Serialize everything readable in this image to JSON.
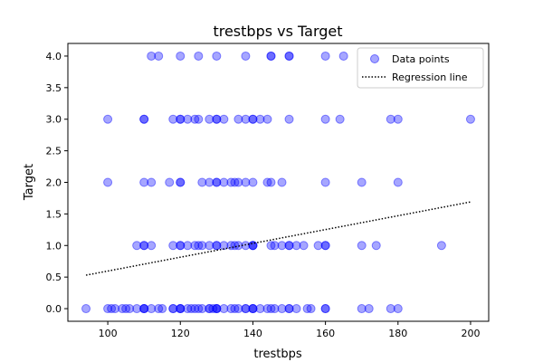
{
  "chart_data": {
    "type": "scatter",
    "title": "trestbps vs Target",
    "xlabel": "trestbps",
    "ylabel": "Target",
    "xlim": [
      89,
      205
    ],
    "ylim": [
      -0.2,
      4.2
    ],
    "xticks": [
      100,
      120,
      140,
      160,
      180,
      200
    ],
    "yticks": [
      0.0,
      0.5,
      1.0,
      1.5,
      2.0,
      2.5,
      3.0,
      3.5,
      4.0
    ],
    "grid": false,
    "legend_position": "top-right",
    "series": [
      {
        "name": "Data points",
        "color": "#0000ff",
        "opacity": 0.35,
        "points": [
          [
            94,
            0
          ],
          [
            100,
            0
          ],
          [
            101,
            0
          ],
          [
            102,
            0
          ],
          [
            104,
            0
          ],
          [
            105,
            0
          ],
          [
            106,
            0
          ],
          [
            108,
            0
          ],
          [
            110,
            0
          ],
          [
            110,
            0
          ],
          [
            110,
            0
          ],
          [
            112,
            0
          ],
          [
            114,
            0
          ],
          [
            115,
            0
          ],
          [
            118,
            0
          ],
          [
            118,
            0
          ],
          [
            120,
            0
          ],
          [
            120,
            0
          ],
          [
            120,
            0
          ],
          [
            122,
            0
          ],
          [
            123,
            0
          ],
          [
            124,
            0
          ],
          [
            125,
            0
          ],
          [
            126,
            0
          ],
          [
            128,
            0
          ],
          [
            128,
            0
          ],
          [
            129,
            0
          ],
          [
            130,
            0
          ],
          [
            130,
            0
          ],
          [
            130,
            0
          ],
          [
            132,
            0
          ],
          [
            134,
            0
          ],
          [
            135,
            0
          ],
          [
            136,
            0
          ],
          [
            138,
            0
          ],
          [
            138,
            0
          ],
          [
            140,
            0
          ],
          [
            140,
            0
          ],
          [
            140,
            0
          ],
          [
            142,
            0
          ],
          [
            144,
            0
          ],
          [
            145,
            0
          ],
          [
            146,
            0
          ],
          [
            148,
            0
          ],
          [
            150,
            0
          ],
          [
            150,
            0
          ],
          [
            152,
            0
          ],
          [
            155,
            0
          ],
          [
            156,
            0
          ],
          [
            160,
            0
          ],
          [
            160,
            0
          ],
          [
            170,
            0
          ],
          [
            172,
            0
          ],
          [
            178,
            0
          ],
          [
            180,
            0
          ],
          [
            108,
            1
          ],
          [
            110,
            1
          ],
          [
            110,
            1
          ],
          [
            112,
            1
          ],
          [
            118,
            1
          ],
          [
            120,
            1
          ],
          [
            120,
            1
          ],
          [
            122,
            1
          ],
          [
            124,
            1
          ],
          [
            125,
            1
          ],
          [
            126,
            1
          ],
          [
            128,
            1
          ],
          [
            130,
            1
          ],
          [
            130,
            1
          ],
          [
            132,
            1
          ],
          [
            134,
            1
          ],
          [
            135,
            1
          ],
          [
            136,
            1
          ],
          [
            138,
            1
          ],
          [
            140,
            1
          ],
          [
            140,
            1
          ],
          [
            140,
            1
          ],
          [
            145,
            1
          ],
          [
            146,
            1
          ],
          [
            148,
            1
          ],
          [
            150,
            1
          ],
          [
            150,
            1
          ],
          [
            152,
            1
          ],
          [
            154,
            1
          ],
          [
            158,
            1
          ],
          [
            160,
            1
          ],
          [
            160,
            1
          ],
          [
            170,
            1
          ],
          [
            174,
            1
          ],
          [
            192,
            1
          ],
          [
            100,
            2
          ],
          [
            110,
            2
          ],
          [
            112,
            2
          ],
          [
            117,
            2
          ],
          [
            120,
            2
          ],
          [
            120,
            2
          ],
          [
            126,
            2
          ],
          [
            128,
            2
          ],
          [
            130,
            2
          ],
          [
            130,
            2
          ],
          [
            132,
            2
          ],
          [
            134,
            2
          ],
          [
            135,
            2
          ],
          [
            136,
            2
          ],
          [
            138,
            2
          ],
          [
            140,
            2
          ],
          [
            144,
            2
          ],
          [
            145,
            2
          ],
          [
            148,
            2
          ],
          [
            160,
            2
          ],
          [
            170,
            2
          ],
          [
            180,
            2
          ],
          [
            100,
            3
          ],
          [
            110,
            3
          ],
          [
            110,
            3
          ],
          [
            118,
            3
          ],
          [
            120,
            3
          ],
          [
            120,
            3
          ],
          [
            122,
            3
          ],
          [
            124,
            3
          ],
          [
            125,
            3
          ],
          [
            128,
            3
          ],
          [
            130,
            3
          ],
          [
            130,
            3
          ],
          [
            132,
            3
          ],
          [
            136,
            3
          ],
          [
            138,
            3
          ],
          [
            140,
            3
          ],
          [
            140,
            3
          ],
          [
            142,
            3
          ],
          [
            144,
            3
          ],
          [
            150,
            3
          ],
          [
            160,
            3
          ],
          [
            164,
            3
          ],
          [
            178,
            3
          ],
          [
            180,
            3
          ],
          [
            200,
            3
          ],
          [
            112,
            4
          ],
          [
            114,
            4
          ],
          [
            120,
            4
          ],
          [
            125,
            4
          ],
          [
            130,
            4
          ],
          [
            138,
            4
          ],
          [
            145,
            4
          ],
          [
            145,
            4
          ],
          [
            150,
            4
          ],
          [
            150,
            4
          ],
          [
            160,
            4
          ],
          [
            165,
            4
          ]
        ]
      },
      {
        "name": "Regression line",
        "color": "#000000",
        "style": "dotted",
        "line": [
          [
            94,
            0.53
          ],
          [
            200,
            1.69
          ]
        ]
      }
    ]
  }
}
